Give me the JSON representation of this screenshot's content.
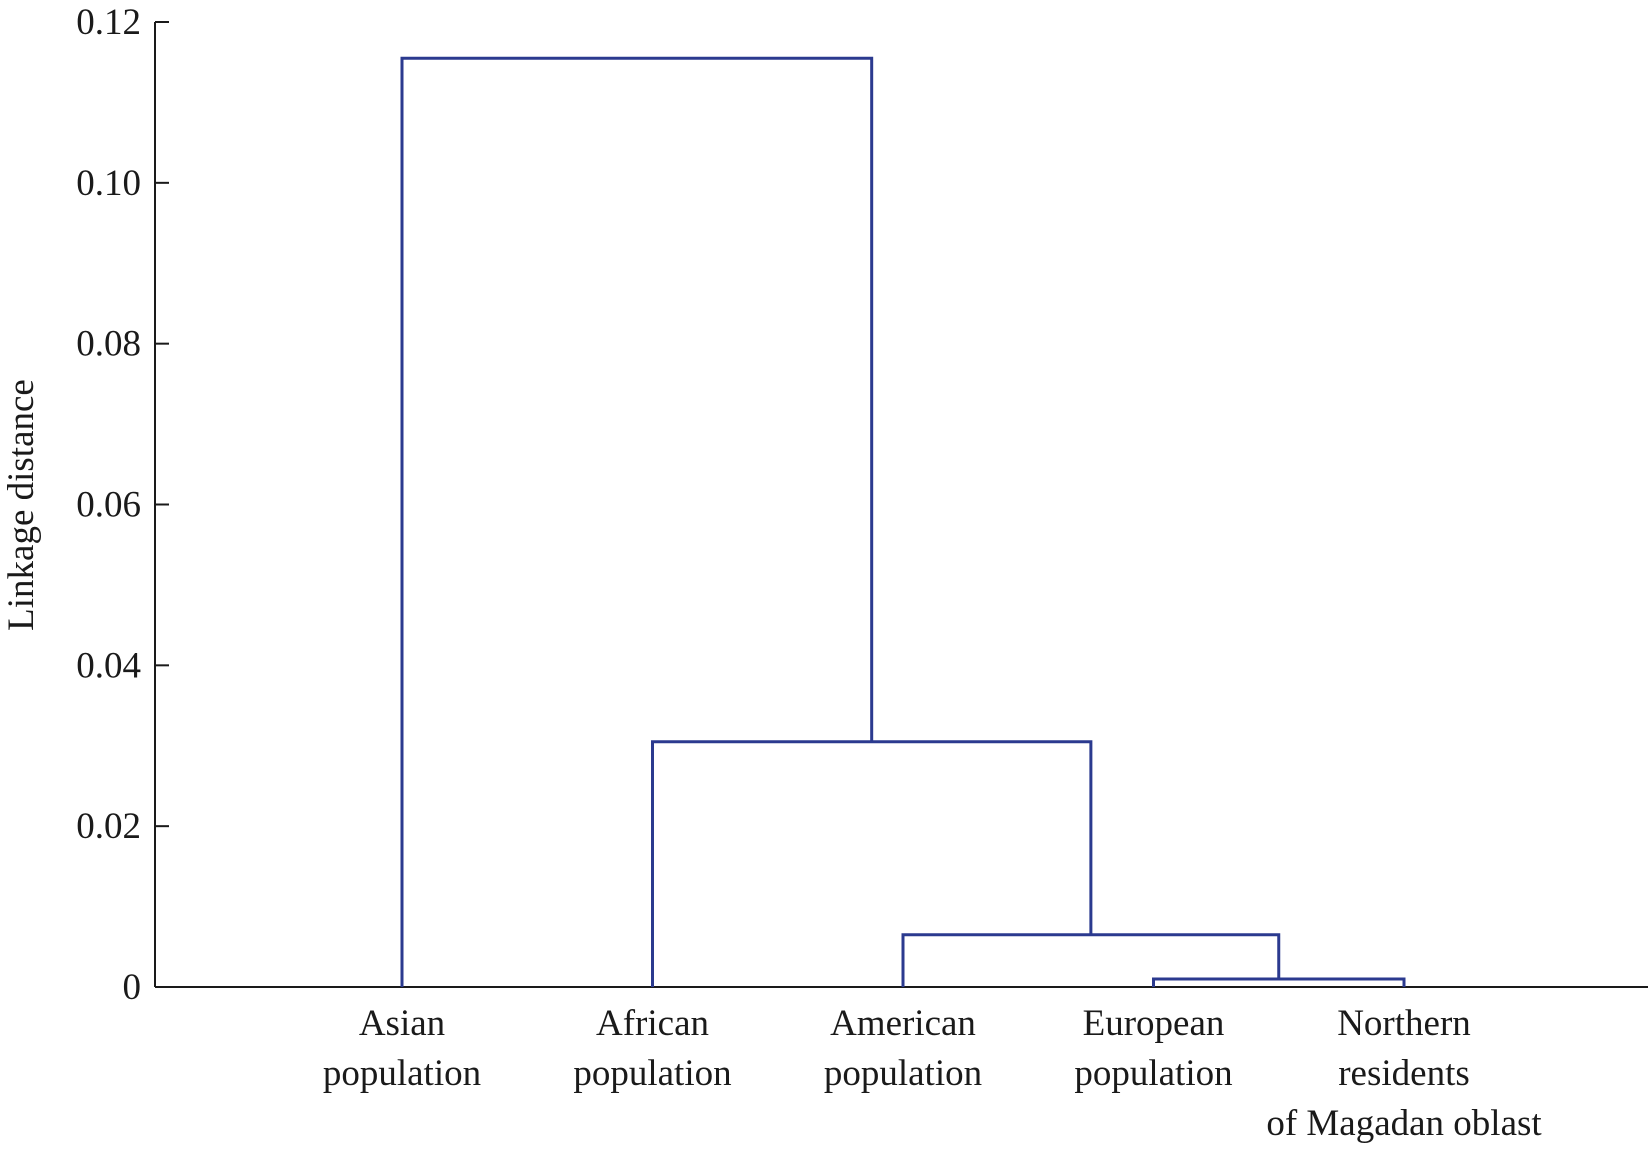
{
  "chart_data": {
    "type": "dendrogram",
    "title": "",
    "xlabel": "",
    "ylabel": "Linkage distance",
    "ylim": [
      0,
      0.12
    ],
    "yticks": [
      "0",
      "0.02",
      "0.04",
      "0.06",
      "0.08",
      "0.10",
      "0.12"
    ],
    "ytick_values": [
      0,
      0.02,
      0.04,
      0.06,
      0.08,
      0.1,
      0.12
    ],
    "grid": false,
    "link_color": "#2b3a8f",
    "leaves": [
      {
        "lines": [
          "Asian",
          "population"
        ]
      },
      {
        "lines": [
          "African",
          "population"
        ]
      },
      {
        "lines": [
          "American",
          "population"
        ]
      },
      {
        "lines": [
          "European",
          "population"
        ]
      },
      {
        "lines": [
          "Northern",
          "residents",
          "of Magadan oblast"
        ]
      }
    ],
    "merges": [
      {
        "left": "leaf:3",
        "right": "leaf:4",
        "height": 0.001
      },
      {
        "left": "leaf:2",
        "right": "merge:0",
        "height": 0.0065
      },
      {
        "left": "leaf:1",
        "right": "merge:1",
        "height": 0.0305
      },
      {
        "left": "leaf:0",
        "right": "merge:2",
        "height": 0.1155
      }
    ]
  }
}
